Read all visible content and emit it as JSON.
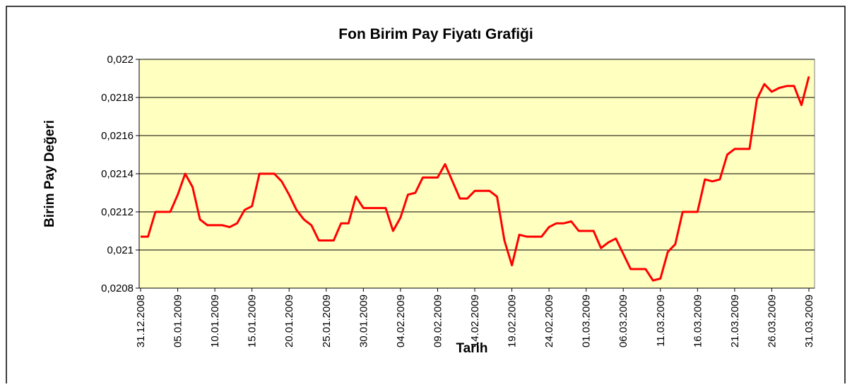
{
  "chart_data": {
    "type": "line",
    "title": "Fon Birim Pay Fiyatı Grafiği",
    "x_label": "Tarih",
    "y_label": "Birim Pay Değeri",
    "categories": [
      "31.12.2008",
      null,
      null,
      null,
      null,
      "05.01.2009",
      null,
      null,
      null,
      null,
      "10.01.2009",
      null,
      null,
      null,
      null,
      "15.01.2009",
      null,
      null,
      null,
      null,
      "20.01.2009",
      null,
      null,
      null,
      null,
      "25.01.2009",
      null,
      null,
      null,
      null,
      "30.01.2009",
      null,
      null,
      null,
      null,
      "04.02.2009",
      null,
      null,
      null,
      null,
      "09.02.2009",
      null,
      null,
      null,
      null,
      "14.02.2009",
      null,
      null,
      null,
      null,
      "19.02.2009",
      null,
      null,
      null,
      null,
      "24.02.2009",
      null,
      null,
      null,
      null,
      "01.03.2009",
      null,
      null,
      null,
      null,
      "06.03.2009",
      null,
      null,
      null,
      null,
      "11.03.2009",
      null,
      null,
      null,
      null,
      "16.03.2009",
      null,
      null,
      null,
      null,
      "21.03.2009",
      null,
      null,
      null,
      null,
      "26.03.2009",
      null,
      null,
      null,
      null,
      "31.03.2009"
    ],
    "values": [
      0.02107,
      0.02107,
      0.0212,
      0.0212,
      0.0212,
      0.02129,
      0.0214,
      0.02133,
      0.02116,
      0.02113,
      0.02113,
      0.02113,
      0.02112,
      0.02114,
      0.02121,
      0.02123,
      0.0214,
      0.0214,
      0.0214,
      0.02136,
      0.02129,
      0.02121,
      0.02116,
      0.02113,
      0.02105,
      0.02105,
      0.02105,
      0.02114,
      0.02114,
      0.02128,
      0.02122,
      0.02122,
      0.02122,
      0.02122,
      0.0211,
      0.02117,
      0.02129,
      0.0213,
      0.02138,
      0.02138,
      0.02138,
      0.02145,
      0.02136,
      0.02127,
      0.02127,
      0.02131,
      0.02131,
      0.02131,
      0.02128,
      0.02105,
      0.02092,
      0.02108,
      0.02107,
      0.02107,
      0.02107,
      0.02112,
      0.02114,
      0.02114,
      0.02115,
      0.0211,
      0.0211,
      0.0211,
      0.02101,
      0.02104,
      0.02106,
      0.02098,
      0.0209,
      0.0209,
      0.0209,
      0.02084,
      0.02085,
      0.02099,
      0.02103,
      0.0212,
      0.0212,
      0.0212,
      0.02137,
      0.02136,
      0.02137,
      0.0215,
      0.02153,
      0.02153,
      0.02153,
      0.02179,
      0.02187,
      0.02183,
      0.02185,
      0.02186,
      0.02186,
      0.02176,
      0.02191
    ],
    "color": "#ff0000",
    "plot_background": "#ffffc0",
    "ylim": [
      0.0208,
      0.022
    ],
    "yticks": [
      {
        "value": 0.0208,
        "label": "0,0208"
      },
      {
        "value": 0.021,
        "label": "0,021"
      },
      {
        "value": 0.0212,
        "label": "0,0212"
      },
      {
        "value": 0.0214,
        "label": "0,0214"
      },
      {
        "value": 0.0216,
        "label": "0,0216"
      },
      {
        "value": 0.0218,
        "label": "0,0218"
      },
      {
        "value": 0.022,
        "label": "0,022"
      }
    ],
    "grid": true
  }
}
